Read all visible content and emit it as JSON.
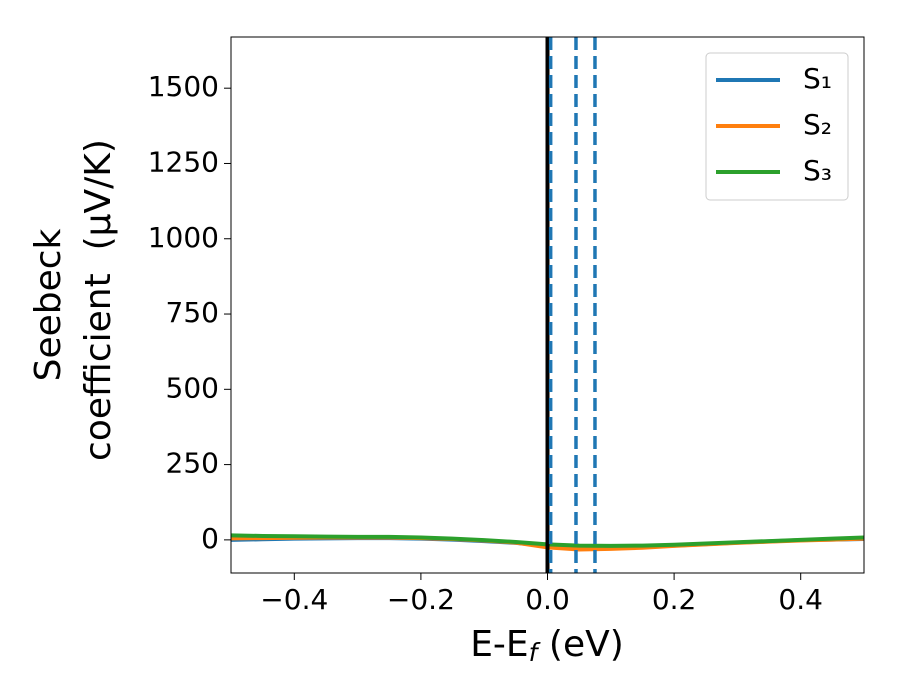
{
  "chart_data": {
    "type": "line",
    "ylabel": [
      "Seebeck",
      "coefficient  (μV/K)"
    ],
    "xlabel": [
      "E-E",
      "f",
      " (eV)"
    ],
    "x": [
      -0.5,
      -0.45,
      -0.4,
      -0.35,
      -0.3,
      -0.25,
      -0.2,
      -0.15,
      -0.1,
      -0.05,
      0,
      0.05,
      0.1,
      0.15,
      0.2,
      0.25,
      0.3,
      0.35,
      0.4,
      0.45,
      0.5
    ],
    "series": [
      {
        "name": "S₁",
        "color": "#1f77b4",
        "values": [
          0,
          2,
          4,
          5,
          6,
          6,
          4,
          1,
          -4,
          -10,
          -20,
          -28,
          -27,
          -24,
          -19,
          -14,
          -9,
          -5,
          -1,
          1,
          3
        ]
      },
      {
        "name": "S₂",
        "color": "#ff7f0e",
        "values": [
          5,
          6,
          7,
          8,
          8,
          8,
          6,
          3,
          -2,
          -9,
          -25,
          -32,
          -30,
          -26,
          -20,
          -15,
          -10,
          -6,
          -2,
          1,
          4
        ]
      },
      {
        "name": "S₃",
        "color": "#2ca02c",
        "values": [
          15,
          13,
          12,
          11,
          10,
          10,
          8,
          4,
          -1,
          -7,
          -15,
          -19,
          -20,
          -19,
          -16,
          -12,
          -8,
          -4,
          0,
          4,
          8
        ]
      }
    ],
    "vlines": [
      {
        "x": 0,
        "color": "#000000",
        "style": "solid"
      },
      {
        "x": 0.005,
        "color": "#1f77b4",
        "style": "dashed"
      },
      {
        "x": 0.045,
        "color": "#1f77b4",
        "style": "dashed"
      },
      {
        "x": 0.075,
        "color": "#1f77b4",
        "style": "dashed"
      }
    ],
    "xlim": [
      -0.5,
      0.5
    ],
    "xticks": [
      {
        "value": -0.4,
        "label": "−0.4"
      },
      {
        "value": -0.2,
        "label": "−0.2"
      },
      {
        "value": 0,
        "label": "0.0"
      },
      0.2,
      0.4
    ],
    "ylim": [
      -110,
      1670
    ],
    "yticks": [
      0,
      250,
      500,
      750,
      1000,
      1250,
      1500
    ],
    "legend": "upper right"
  }
}
